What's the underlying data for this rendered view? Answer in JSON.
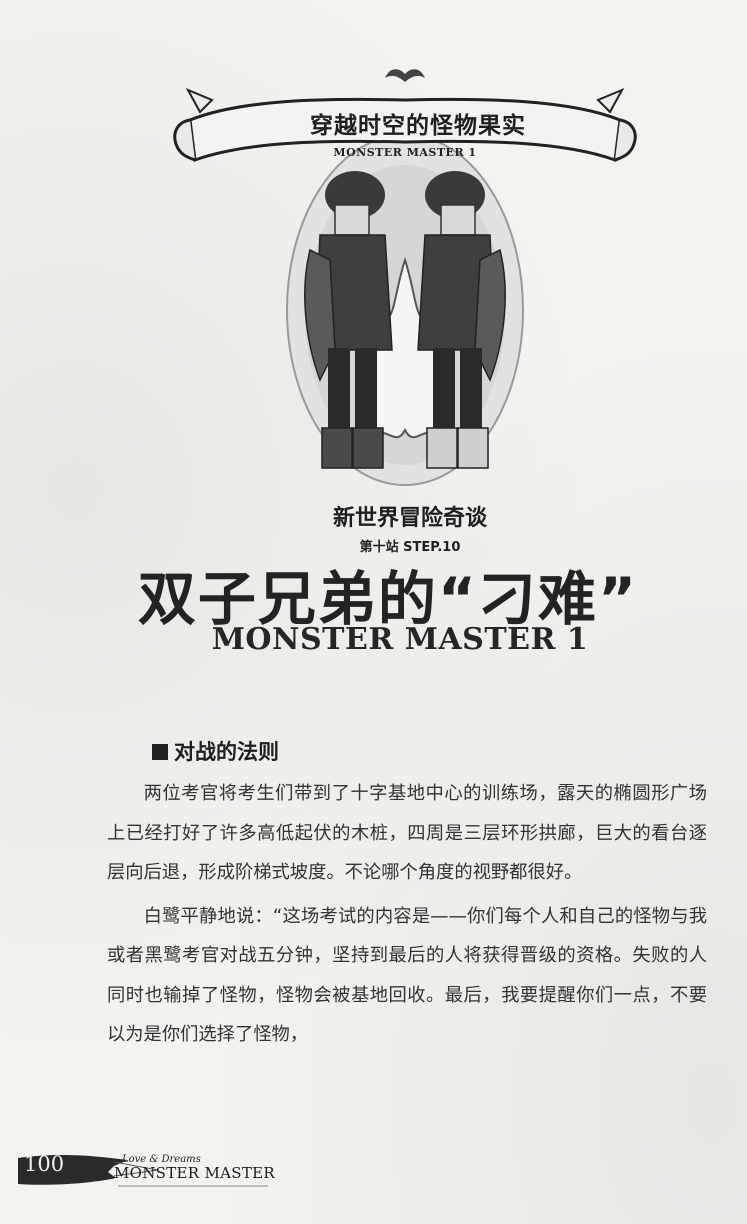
{
  "banner": {
    "title": "穿越时空的怪物果实",
    "subtitle": "MONSTER MASTER 1"
  },
  "heading": {
    "series_title": "新世界冒险奇谈",
    "station_label": "第十站 STEP.10",
    "chapter_title": "双子兄弟的“刁难”",
    "chapter_subtitle": "MONSTER MASTER 1"
  },
  "section": {
    "heading": "对战的法则",
    "paragraphs": [
      "两位考官将考生们带到了十字基地中心的训练场，露天的椭圆形广场上已经打好了许多高低起伏的木桩，四周是三层环形拱廊，巨大的看台逐层向后退，形成阶梯式坡度。不论哪个角度的视野都很好。",
      "白鹭平静地说：“这场考试的内容是——你们每个人和自己的怪物与我或者黑鹭考官对战五分钟，坚持到最后的人将获得晋级的资格。失败的人同时也输掉了怪物，怪物会被基地回收。最后，我要提醒你们一点，不要以为是你们选择了怪物，"
    ]
  },
  "footer": {
    "page_number": "100",
    "tagline": "Love & Dreams",
    "brand": "MONSTER MASTER"
  },
  "colors": {
    "paper": "#f4f3f0",
    "ink": "#232323"
  }
}
